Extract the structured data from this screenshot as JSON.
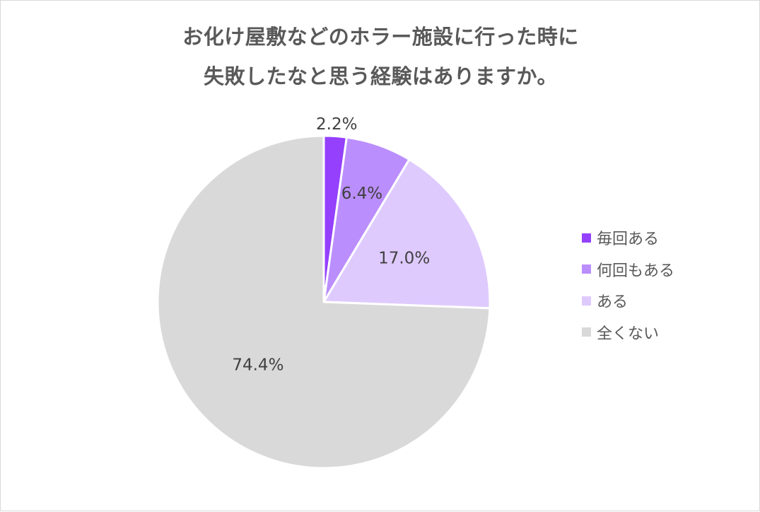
{
  "title_lines": [
    "お化け屋敷などのホラー施設に行った時に",
    "失敗したなと思う経験はありますか。"
  ],
  "chart_data": {
    "type": "pie",
    "title": "お化け屋敷などのホラー施設に行った時に失敗したなと思う経験はありますか。",
    "categories": [
      "毎回ある",
      "何回もある",
      "ある",
      "全くない"
    ],
    "values": [
      2.2,
      6.4,
      17.0,
      74.4
    ],
    "data_labels": [
      "2.2%",
      "6.4%",
      "17.0%",
      "74.4%"
    ],
    "colors": [
      "#9440fd",
      "#bb8efd",
      "#dfcafe",
      "#d9d9d9"
    ],
    "start_angle_deg": 0,
    "direction": "clockwise",
    "legend_placement": "right"
  }
}
